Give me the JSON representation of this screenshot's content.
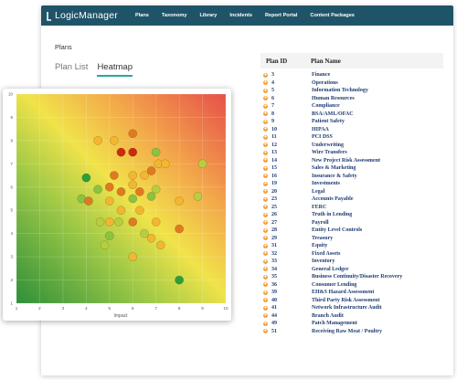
{
  "app": {
    "logo_text": "LogicManager",
    "nav": [
      "Plans",
      "Taxonomy",
      "Library",
      "Incidents",
      "Report Portal",
      "Content Packages"
    ]
  },
  "page": {
    "breadcrumb": "Plans",
    "tabs": [
      {
        "label": "Plan List"
      },
      {
        "label": "Heatmap"
      }
    ]
  },
  "plans_table": {
    "headers": [
      "Plan ID",
      "Plan Name"
    ],
    "rows": [
      [
        "3",
        "Finance"
      ],
      [
        "4",
        "Operations"
      ],
      [
        "5",
        "Information Technology"
      ],
      [
        "6",
        "Human Resources"
      ],
      [
        "7",
        "Compliance"
      ],
      [
        "8",
        "BSA/AML/OFAC"
      ],
      [
        "9",
        "Patient Safety"
      ],
      [
        "10",
        "HIPAA"
      ],
      [
        "11",
        "PCI DSS"
      ],
      [
        "12",
        "Underwriting"
      ],
      [
        "13",
        "Wire Transfers"
      ],
      [
        "14",
        "New Project Risk Assessment"
      ],
      [
        "15",
        "Sales & Marketing"
      ],
      [
        "16",
        "Insurance & Safety"
      ],
      [
        "19",
        "Investments"
      ],
      [
        "20",
        "Legal"
      ],
      [
        "23",
        "Accounts Payable"
      ],
      [
        "25",
        "FERC"
      ],
      [
        "26",
        "Truth in Lending"
      ],
      [
        "27",
        "Payroll"
      ],
      [
        "28",
        "Entity Level Controls"
      ],
      [
        "29",
        "Treasury"
      ],
      [
        "31",
        "Equity"
      ],
      [
        "32",
        "Fixed Assets"
      ],
      [
        "33",
        "Inventory"
      ],
      [
        "34",
        "General Ledger"
      ],
      [
        "35",
        "Business Continuity/Disaster Recovery"
      ],
      [
        "36",
        "Consumer Lending"
      ],
      [
        "39",
        "EH&S Hazard Assessment"
      ],
      [
        "40",
        "Third Party Risk Assessment"
      ],
      [
        "41",
        "Network Infrastructure Audit"
      ],
      [
        "44",
        "Branch Audit"
      ],
      [
        "49",
        "Patch Management"
      ],
      [
        "51",
        "Receiving Raw Meat / Poultry"
      ]
    ]
  },
  "colors": {
    "topbar": "#1f5468",
    "tab_accent": "#27a9a1",
    "plan_link": "#1f3a70",
    "expand_icon": "#f2a13a"
  },
  "chart_data": {
    "type": "scatter",
    "xlabel": "Impact",
    "ylabel": "",
    "xlim": [
      1,
      10
    ],
    "ylim": [
      1,
      10
    ],
    "x_ticks": [
      "1",
      "2",
      "3",
      "4",
      "5",
      "6",
      "7",
      "8",
      "9",
      "10"
    ],
    "y_ticks": [
      "1",
      "2",
      "3",
      "4",
      "5",
      "6",
      "7",
      "8",
      "9",
      "10"
    ],
    "grid": true,
    "background": "green-yellow-red gradient (low-left green, high-right red)",
    "points": [
      {
        "x": 4.0,
        "y": 6.4,
        "color": "#2e9e3a"
      },
      {
        "x": 8.0,
        "y": 2.0,
        "color": "#2e9e3a"
      },
      {
        "x": 6.0,
        "y": 8.3,
        "color": "#e07a20"
      },
      {
        "x": 5.5,
        "y": 7.5,
        "color": "#cc2a10"
      },
      {
        "x": 6.0,
        "y": 7.5,
        "color": "#cc2a10"
      },
      {
        "x": 4.5,
        "y": 8.0,
        "color": "#f2b630"
      },
      {
        "x": 5.2,
        "y": 8.0,
        "color": "#f2b630"
      },
      {
        "x": 7.0,
        "y": 7.5,
        "color": "#8ac43f"
      },
      {
        "x": 7.1,
        "y": 7.0,
        "color": "#f2b630"
      },
      {
        "x": 6.8,
        "y": 6.7,
        "color": "#e07a20"
      },
      {
        "x": 7.4,
        "y": 7.0,
        "color": "#f2b630"
      },
      {
        "x": 9.0,
        "y": 7.0,
        "color": "#b9cd3f"
      },
      {
        "x": 5.2,
        "y": 6.5,
        "color": "#e07a20"
      },
      {
        "x": 6.0,
        "y": 6.5,
        "color": "#f2b630"
      },
      {
        "x": 6.5,
        "y": 6.5,
        "color": "#f2b630"
      },
      {
        "x": 5.0,
        "y": 6.0,
        "color": "#e07a20"
      },
      {
        "x": 5.5,
        "y": 5.8,
        "color": "#e07a20"
      },
      {
        "x": 6.0,
        "y": 6.1,
        "color": "#f2b630"
      },
      {
        "x": 6.3,
        "y": 5.8,
        "color": "#e07a20"
      },
      {
        "x": 4.5,
        "y": 5.9,
        "color": "#8ac43f"
      },
      {
        "x": 3.8,
        "y": 5.5,
        "color": "#8ac43f"
      },
      {
        "x": 4.1,
        "y": 5.4,
        "color": "#e07a20"
      },
      {
        "x": 5.0,
        "y": 5.4,
        "color": "#f2b630"
      },
      {
        "x": 6.0,
        "y": 5.5,
        "color": "#8ac43f"
      },
      {
        "x": 6.8,
        "y": 5.6,
        "color": "#8ac43f"
      },
      {
        "x": 7.0,
        "y": 5.9,
        "color": "#b9cd3f"
      },
      {
        "x": 6.3,
        "y": 5.0,
        "color": "#f2b630"
      },
      {
        "x": 5.5,
        "y": 5.0,
        "color": "#f2b630"
      },
      {
        "x": 8.0,
        "y": 5.4,
        "color": "#f2b630"
      },
      {
        "x": 8.8,
        "y": 5.6,
        "color": "#b9cd3f"
      },
      {
        "x": 5.0,
        "y": 4.5,
        "color": "#f2b630"
      },
      {
        "x": 6.0,
        "y": 4.5,
        "color": "#e07a20"
      },
      {
        "x": 4.6,
        "y": 4.5,
        "color": "#b9cd3f"
      },
      {
        "x": 5.4,
        "y": 4.5,
        "color": "#b9cd3f"
      },
      {
        "x": 6.5,
        "y": 4.0,
        "color": "#b9cd3f"
      },
      {
        "x": 5.0,
        "y": 3.9,
        "color": "#8ac43f"
      },
      {
        "x": 7.0,
        "y": 4.5,
        "color": "#f2b630"
      },
      {
        "x": 6.8,
        "y": 3.8,
        "color": "#f2b630"
      },
      {
        "x": 8.0,
        "y": 4.2,
        "color": "#e07a20"
      },
      {
        "x": 4.8,
        "y": 3.5,
        "color": "#b9cd3f"
      },
      {
        "x": 7.2,
        "y": 3.5,
        "color": "#f2b630"
      },
      {
        "x": 6.0,
        "y": 3.0,
        "color": "#f2b630"
      }
    ]
  }
}
